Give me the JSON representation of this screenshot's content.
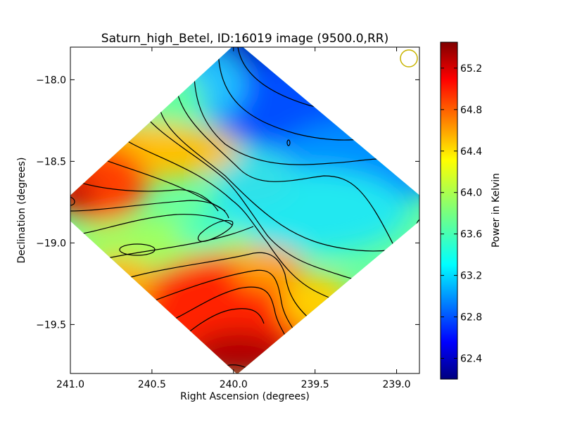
{
  "chart_data": {
    "type": "heatmap",
    "title": "Saturn_high_Betel, ID:16019 image (9500.0,RR)",
    "xlabel": "Right Ascension (degrees)",
    "ylabel": "Declination (degrees)",
    "xlim": [
      241.0,
      238.86
    ],
    "ylim": [
      -19.8,
      -17.8
    ],
    "x_ticks": [
      241.0,
      240.5,
      240.0,
      239.5,
      239.0
    ],
    "x_tick_labels": [
      "241.0",
      "240.5",
      "240.0",
      "239.5",
      "239.0"
    ],
    "y_ticks": [
      -18.0,
      -18.5,
      -19.0,
      -19.5
    ],
    "y_tick_labels": [
      "−18.0",
      "−18.5",
      "−19.0",
      "−19.5"
    ],
    "colormap": "jet",
    "colorbar": {
      "label": "Power in Kelvin",
      "range": [
        62.2,
        65.45
      ],
      "ticks": [
        62.4,
        62.8,
        63.2,
        63.6,
        64.0,
        64.4,
        64.8,
        65.2
      ],
      "tick_labels": [
        "62.4",
        "62.8",
        "63.2",
        "63.6",
        "64.0",
        "64.4",
        "64.8",
        "65.2"
      ]
    },
    "footprint": "diamond",
    "contours": "black",
    "beam_marker": {
      "shape": "circle",
      "color": "#c8b400",
      "position": "top-right"
    },
    "features": [
      {
        "label": "peak",
        "ra": 240.0,
        "dec": -19.75,
        "value": 65.4
      },
      {
        "label": "peak",
        "ra": 241.0,
        "dec": -18.73,
        "value": 65.3
      },
      {
        "label": "minimum",
        "ra": 239.8,
        "dec": -17.9,
        "value": 62.2
      },
      {
        "label": "minimum",
        "ra": 239.35,
        "dec": -18.12,
        "value": 62.3
      }
    ]
  }
}
